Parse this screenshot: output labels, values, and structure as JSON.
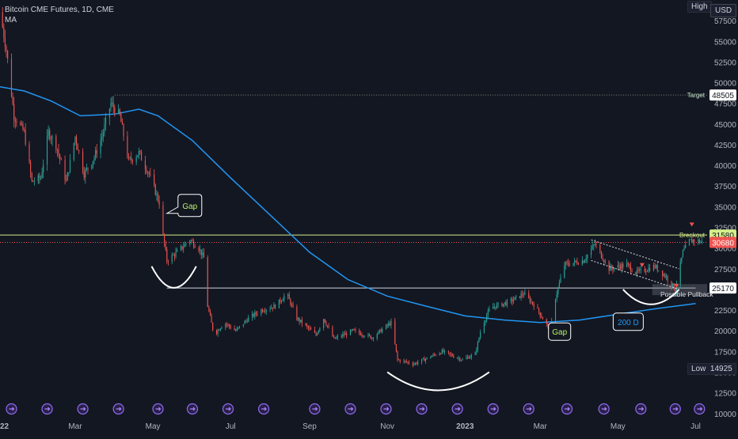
{
  "header": {
    "title": "Bitcoin CME Futures, 1D, CME",
    "indicator": "MA"
  },
  "price_scale": {
    "currency": "USD",
    "high_label": "High",
    "low_label": "Low",
    "low_value": "14925"
  },
  "colors": {
    "background": "#131722",
    "up": "#26a69a",
    "down": "#ef5350",
    "ma": "#2196f3",
    "target_line": "#c8e6c9",
    "breakout_line": "#d4ee8a",
    "current_line": "#ef5350",
    "text": "#b2b5be"
  },
  "chart_data": {
    "type": "candlestick",
    "x_ticks": [
      "2022",
      "Mar",
      "May",
      "Jul",
      "Sep",
      "Nov",
      "2023",
      "Mar",
      "May",
      "Jul"
    ],
    "y_ticks": [
      10000,
      12500,
      15000,
      17500,
      20000,
      22500,
      25000,
      27500,
      30000,
      32500,
      35000,
      37500,
      40000,
      42500,
      45000,
      47500,
      50000,
      52500,
      55000,
      57500
    ],
    "ylim": [
      9500,
      60000
    ],
    "time_range": [
      "2022-01-01",
      "2023-07-10"
    ],
    "price_path": [
      [
        "2022-01-01",
        58500
      ],
      [
        "2022-01-06",
        54000
      ],
      [
        "2022-01-12",
        46000
      ],
      [
        "2022-01-20",
        44000
      ],
      [
        "2022-01-26",
        38000
      ],
      [
        "2022-02-02",
        38500
      ],
      [
        "2022-02-08",
        44000
      ],
      [
        "2022-02-14",
        42500
      ],
      [
        "2022-02-22",
        38000
      ],
      [
        "2022-03-01",
        43500
      ],
      [
        "2022-03-08",
        39000
      ],
      [
        "2022-03-16",
        41000
      ],
      [
        "2022-03-22",
        43500
      ],
      [
        "2022-03-29",
        47500
      ],
      [
        "2022-04-05",
        46000
      ],
      [
        "2022-04-12",
        40500
      ],
      [
        "2022-04-20",
        41500
      ],
      [
        "2022-04-28",
        39000
      ],
      [
        "2022-05-06",
        35500
      ],
      [
        "2022-05-09",
        31500
      ],
      [
        "2022-05-12",
        28500
      ],
      [
        "2022-05-20",
        29500
      ],
      [
        "2022-05-30",
        31000
      ],
      [
        "2022-06-06",
        30000
      ],
      [
        "2022-06-11",
        28500
      ],
      [
        "2022-06-13",
        23000
      ],
      [
        "2022-06-18",
        19500
      ],
      [
        "2022-06-26",
        21000
      ],
      [
        "2022-07-05",
        20000
      ],
      [
        "2022-07-15",
        21500
      ],
      [
        "2022-07-25",
        22500
      ],
      [
        "2022-08-05",
        23000
      ],
      [
        "2022-08-14",
        24500
      ],
      [
        "2022-08-22",
        21500
      ],
      [
        "2022-09-06",
        19500
      ],
      [
        "2022-09-12",
        21500
      ],
      [
        "2022-09-20",
        19000
      ],
      [
        "2022-10-05",
        20000
      ],
      [
        "2022-10-20",
        19200
      ],
      [
        "2022-11-04",
        21000
      ],
      [
        "2022-11-09",
        16500
      ],
      [
        "2022-11-22",
        16000
      ],
      [
        "2022-12-14",
        17500
      ],
      [
        "2022-12-30",
        16500
      ],
      [
        "2023-01-09",
        17200
      ],
      [
        "2023-01-14",
        20500
      ],
      [
        "2023-01-21",
        22800
      ],
      [
        "2023-02-05",
        23500
      ],
      [
        "2023-02-16",
        24500
      ],
      [
        "2023-02-25",
        23000
      ],
      [
        "2023-03-09",
        20000
      ],
      [
        "2023-03-13",
        24000
      ],
      [
        "2023-03-20",
        28000
      ],
      [
        "2023-04-04",
        28500
      ],
      [
        "2023-04-13",
        30500
      ],
      [
        "2023-04-24",
        27500
      ],
      [
        "2023-05-08",
        28000
      ],
      [
        "2023-05-15",
        27000
      ],
      [
        "2023-05-30",
        27800
      ],
      [
        "2023-06-08",
        26500
      ],
      [
        "2023-06-15",
        25000
      ],
      [
        "2023-06-21",
        29500
      ],
      [
        "2023-06-26",
        30800
      ],
      [
        "2023-06-30",
        31000
      ],
      [
        "2023-07-06",
        30700
      ]
    ],
    "ma_200d": [
      [
        "2022-01-01",
        49500
      ],
      [
        "2022-01-20",
        49000
      ],
      [
        "2022-02-10",
        47800
      ],
      [
        "2022-03-05",
        46000
      ],
      [
        "2022-04-01",
        46200
      ],
      [
        "2022-04-20",
        46800
      ],
      [
        "2022-05-05",
        46000
      ],
      [
        "2022-06-01",
        43000
      ],
      [
        "2022-07-01",
        38500
      ],
      [
        "2022-08-01",
        34000
      ],
      [
        "2022-09-01",
        29500
      ],
      [
        "2022-10-01",
        26200
      ],
      [
        "2022-11-01",
        24200
      ],
      [
        "2022-12-01",
        23000
      ],
      [
        "2023-01-01",
        21800
      ],
      [
        "2023-02-01",
        21300
      ],
      [
        "2023-03-01",
        21000
      ],
      [
        "2023-04-01",
        21300
      ],
      [
        "2023-05-01",
        22000
      ],
      [
        "2023-06-01",
        22700
      ],
      [
        "2023-07-01",
        23300
      ]
    ],
    "levels": [
      {
        "name": "target",
        "value": 48505,
        "label": "Target",
        "axis_label": "48505"
      },
      {
        "name": "breakout",
        "value": 31580,
        "label": "Breakout",
        "axis_label": "31580"
      },
      {
        "name": "current",
        "value": 30680,
        "axis_label": "30680"
      },
      {
        "name": "pullback",
        "value": 25170,
        "label": "Possible Pullback",
        "axis_label": "25170"
      }
    ],
    "annotations": [
      {
        "name": "gap-top",
        "text": "Gap",
        "date": "2022-05-12",
        "price": 34200
      },
      {
        "name": "gap-bottom",
        "text": "Gap",
        "date": "2023-03-10",
        "price": 20000
      },
      {
        "name": "ma-label",
        "text": "200 D",
        "date": "2023-05-01",
        "price": 21000
      }
    ],
    "arcs": [
      {
        "name": "arc-may-2022",
        "start": [
          "2022-04-30",
          27800
        ],
        "end": [
          "2022-06-04",
          27800
        ],
        "depth_price": 2600
      },
      {
        "name": "arc-nov-2022",
        "start": [
          "2022-11-01",
          15000
        ],
        "end": [
          "2023-01-20",
          15000
        ],
        "depth_price": 2200
      },
      {
        "name": "arc-jun-2023",
        "start": [
          "2023-05-05",
          25000
        ],
        "end": [
          "2023-06-18",
          25000
        ],
        "depth_price": 1800
      }
    ],
    "channel": [
      {
        "name": "channel-upper",
        "start": [
          "2023-04-10",
          31000
        ],
        "end": [
          "2023-06-18",
          27500
        ]
      },
      {
        "name": "channel-lower",
        "start": [
          "2023-04-10",
          28500
        ],
        "end": [
          "2023-06-18",
          25000
        ]
      }
    ]
  }
}
